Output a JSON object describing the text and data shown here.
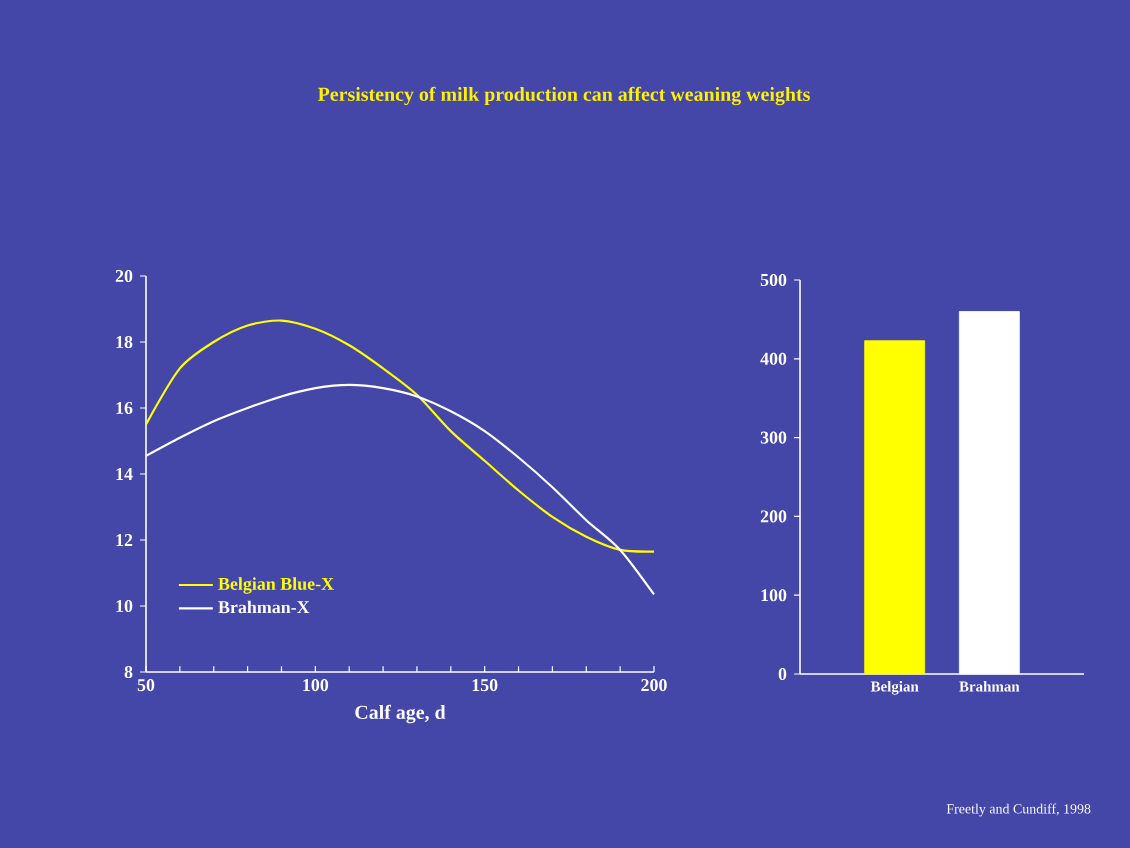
{
  "chart_data": [
    {
      "type": "line",
      "title": "Persistency of milk production can affect weaning weights",
      "xlabel": "Calf age, d",
      "x": [
        50,
        60,
        70,
        80,
        90,
        100,
        110,
        120,
        130,
        140,
        150,
        160,
        170,
        180,
        190,
        200
      ],
      "series": [
        {
          "name": "Belgian Blue-X",
          "color": "#ffff00",
          "values": [
            15.5,
            17.2,
            18.0,
            18.5,
            18.65,
            18.4,
            17.9,
            17.2,
            16.4,
            15.3,
            14.4,
            13.5,
            12.7,
            12.1,
            11.7,
            11.65
          ]
        },
        {
          "name": "Brahman-X",
          "color": "#ffffff",
          "values": [
            14.55,
            15.1,
            15.6,
            16.0,
            16.35,
            16.6,
            16.7,
            16.6,
            16.35,
            15.9,
            15.3,
            14.5,
            13.6,
            12.6,
            11.7,
            10.35
          ]
        }
      ],
      "xlim": [
        50,
        200
      ],
      "xticks": [
        50,
        100,
        150,
        200
      ],
      "ylim": [
        8,
        20
      ],
      "yticks": [
        8,
        10,
        12,
        14,
        16,
        18,
        20
      ],
      "legend": "bottom left",
      "marker": "none",
      "line_style": "solid",
      "grid": false
    },
    {
      "type": "bar",
      "categories": [
        "Belgian",
        "Brahman"
      ],
      "values": [
        423,
        460
      ],
      "colors": [
        "#ffff00",
        "#ffffff"
      ],
      "ylim": [
        0,
        500
      ],
      "yticks": [
        0,
        100,
        200,
        300,
        400,
        500
      ],
      "grid": false,
      "annotations": [
        "Freetly and Cundiff, 1998"
      ]
    }
  ]
}
